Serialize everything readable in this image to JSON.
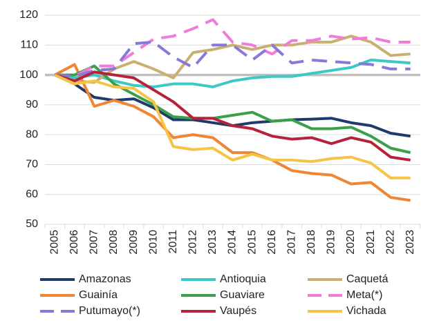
{
  "chart_data": {
    "type": "line",
    "categories": [
      "2005",
      "2006",
      "2007",
      "2008",
      "2009",
      "2010",
      "2011",
      "2012",
      "2013",
      "2014",
      "2015",
      "2016",
      "2017",
      "2018",
      "2019",
      "2020",
      "2021",
      "2022",
      "2023"
    ],
    "ylim": [
      50,
      120
    ],
    "yticks": [
      50,
      60,
      70,
      80,
      90,
      100,
      110,
      120
    ],
    "grid": true,
    "reference_line": 100,
    "legend": "bottom",
    "series": [
      {
        "name": "Amazonas",
        "color": "#1f3a6b",
        "dashed": false,
        "values": [
          100,
          97,
          92.5,
          91.5,
          92,
          89,
          85,
          85,
          84,
          83,
          84,
          84.5,
          85,
          85.2,
          85.5,
          84,
          83,
          80.5,
          79.5
        ]
      },
      {
        "name": "Antioquia",
        "color": "#3cc8c8",
        "dashed": false,
        "values": [
          100,
          99,
          100,
          98,
          96.5,
          96,
          97,
          97,
          96,
          98,
          99,
          99.5,
          99.5,
          100.5,
          101.5,
          102.5,
          105,
          104.5,
          104
        ]
      },
      {
        "name": "Caquetá",
        "color": "#c9b071",
        "dashed": false,
        "values": [
          100,
          98,
          97.5,
          102,
          104.5,
          102,
          99,
          107.5,
          108.5,
          110,
          108.5,
          110,
          110,
          111,
          111,
          113,
          111,
          106.5,
          107
        ]
      },
      {
        "name": "Guainía",
        "color": "#f08533",
        "dashed": false,
        "values": [
          100,
          103.5,
          89.5,
          91.5,
          89.5,
          86,
          79,
          80,
          79,
          74,
          74,
          71.5,
          68,
          67,
          66.5,
          63.5,
          64,
          59,
          58
        ]
      },
      {
        "name": "Guaviare",
        "color": "#3aa04a",
        "dashed": false,
        "values": [
          100,
          100,
          103,
          97,
          93.5,
          90,
          86,
          85.5,
          85.5,
          86.5,
          87.5,
          84.5,
          85,
          82,
          82,
          82.5,
          79.5,
          75.5,
          74
        ]
      },
      {
        "name": "Meta(*)",
        "color": "#f07cd9",
        "dashed": true,
        "values": [
          100,
          99.5,
          103,
          103,
          107.5,
          112,
          113,
          115.5,
          118.5,
          111,
          110,
          107,
          111.5,
          111.5,
          113,
          112,
          112.5,
          111,
          111
        ]
      },
      {
        "name": "Putumayo(*)",
        "color": "#8a78d8",
        "dashed": true,
        "values": [
          100,
          99.5,
          101.5,
          102,
          110.5,
          111,
          106,
          102.5,
          110,
          110,
          105,
          110,
          104,
          105,
          104.5,
          104,
          103.5,
          102,
          102
        ]
      },
      {
        "name": "Vaupés",
        "color": "#b5223a",
        "dashed": false,
        "values": [
          100,
          98,
          101,
          100,
          99,
          95,
          91,
          85.5,
          85.5,
          83,
          82,
          79.5,
          78.5,
          79,
          77,
          79,
          77.5,
          72.5,
          71.5
        ]
      },
      {
        "name": "Vichada",
        "color": "#f5c445",
        "dashed": false,
        "values": [
          100,
          97,
          98,
          96,
          95.5,
          91,
          76,
          75,
          75.5,
          71.5,
          73.5,
          71.5,
          71.5,
          71,
          72,
          72.5,
          70.5,
          65.5,
          65.5
        ]
      }
    ]
  }
}
